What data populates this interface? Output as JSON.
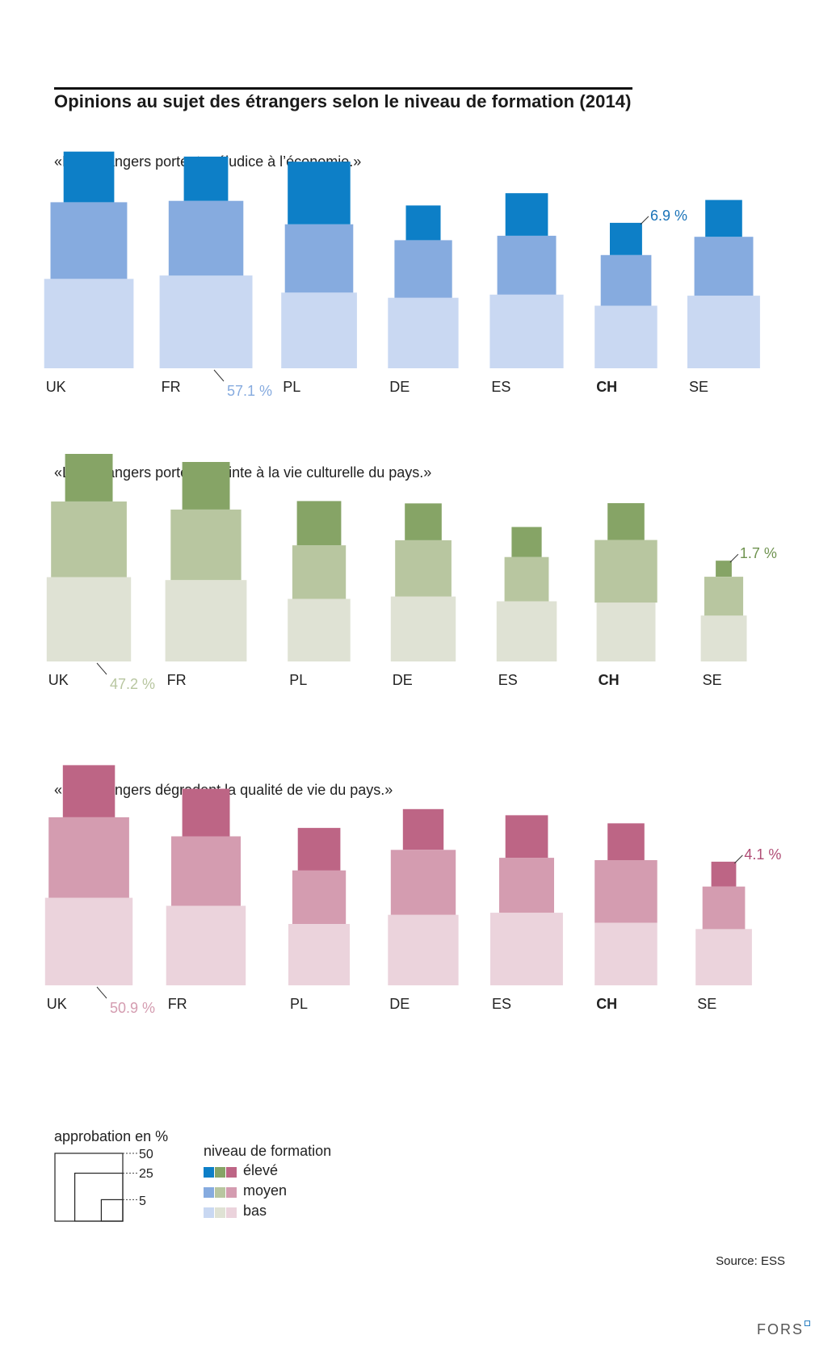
{
  "title": "Opinions au sujet des étrangers selon le niveau de formation (2014)",
  "chart_data": [
    {
      "type": "nested-square",
      "title": "«Les étrangers portent préjudice à l’économie.»",
      "categories": [
        "UK",
        "FR",
        "PL",
        "DE",
        "ES",
        "CH",
        "SE"
      ],
      "highlight": "CH",
      "colors": {
        "eleve": "#0d7fc7",
        "moyen": "#86abdf",
        "bas": "#c9d8f2"
      },
      "series": [
        {
          "name": "bas",
          "values": [
            53,
            57.1,
            38,
            33,
            36,
            26,
            35
          ]
        },
        {
          "name": "moyen",
          "values": [
            39,
            37,
            31,
            22,
            23,
            17,
            23
          ]
        },
        {
          "name": "élevé",
          "values": [
            17,
            13,
            26,
            8,
            12,
            6.9,
            9
          ]
        }
      ],
      "annotation": {
        "text": "57.1 %",
        "category": "FR",
        "series": "bas",
        "color": "#86abdf"
      },
      "annotation2": {
        "text": "6.9 %",
        "category": "CH",
        "series": "élevé",
        "color": "#1a73b8"
      }
    },
    {
      "type": "nested-square",
      "title": "«Les étrangers portent atteinte à la vie culturelle du pays.»",
      "categories": [
        "UK",
        "FR",
        "PL",
        "DE",
        "ES",
        "CH",
        "SE"
      ],
      "highlight": "CH",
      "colors": {
        "eleve": "#86a466",
        "moyen": "#b8c6a0",
        "bas": "#dfe2d4"
      },
      "series": [
        {
          "name": "bas",
          "values": [
            47.2,
            44,
            26,
            28,
            24,
            23,
            14
          ]
        },
        {
          "name": "moyen",
          "values": [
            38,
            33,
            19,
            21,
            13,
            26,
            10
          ]
        },
        {
          "name": "élevé",
          "values": [
            15,
            15,
            13,
            9,
            6,
            9,
            1.7
          ]
        }
      ],
      "annotation": {
        "text": "47.2 %",
        "category": "UK",
        "series": "bas",
        "color": "#b8c6a0"
      },
      "annotation2": {
        "text": "1.7 %",
        "category": "SE",
        "series": "élevé",
        "color": "#6f9350"
      }
    },
    {
      "type": "nested-square",
      "title": "«Les étrangers dégradent la qualité de vie du pays.»",
      "categories": [
        "UK",
        "FR",
        "PL",
        "DE",
        "ES",
        "CH",
        "SE"
      ],
      "highlight": "CH",
      "colors": {
        "eleve": "#bd6585",
        "moyen": "#d49cb0",
        "bas": "#ebd3dc"
      },
      "series": [
        {
          "name": "bas",
          "values": [
            50.9,
            42,
            25,
            33,
            35,
            26,
            21
          ]
        },
        {
          "name": "moyen",
          "values": [
            43,
            32,
            19,
            28,
            20,
            26,
            12
          ]
        },
        {
          "name": "élevé",
          "values": [
            18,
            15,
            12,
            11,
            12,
            9,
            4.1
          ]
        }
      ],
      "annotation": {
        "text": "50.9 %",
        "category": "UK",
        "series": "bas",
        "color": "#d49cb0"
      },
      "annotation2": {
        "text": "4.1 %",
        "category": "SE",
        "series": "élevé",
        "color": "#b04d75"
      }
    }
  ],
  "legend": {
    "size_title": "approbation en %",
    "size_values": [
      "50",
      "25",
      "5"
    ],
    "level_title": "niveau de formation",
    "levels": [
      {
        "label": "élevé",
        "colors": [
          "#0d7fc7",
          "#86a466",
          "#bd6585"
        ]
      },
      {
        "label": "moyen",
        "colors": [
          "#86abdf",
          "#b8c6a0",
          "#d49cb0"
        ]
      },
      {
        "label": "bas",
        "colors": [
          "#c9d8f2",
          "#dfe2d4",
          "#ebd3dc"
        ]
      }
    ]
  },
  "source": "Source: ESS",
  "brand": "FORS"
}
